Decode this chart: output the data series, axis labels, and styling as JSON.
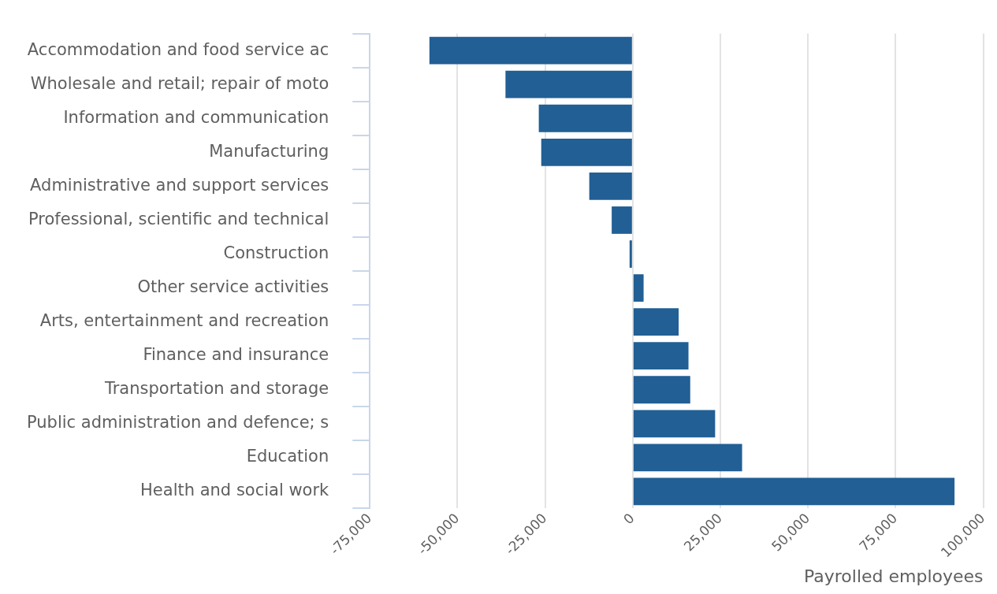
{
  "chart_data": {
    "type": "bar",
    "orientation": "horizontal",
    "xlabel": "Payrolled employees",
    "categories": [
      "Accommodation and food service ac",
      "Wholesale and retail; repair of moto",
      "Information and communication",
      "Manufacturing",
      "Administrative and support services",
      "Professional, scientific and technical",
      "Construction",
      "Other service activities",
      "Arts, entertainment and recreation",
      "Finance and insurance",
      "Transportation and storage",
      "Public administration and defence; s",
      "Education",
      "Health and social work"
    ],
    "values": [
      -58000,
      -36300,
      -26800,
      -26100,
      -12400,
      -6000,
      -900,
      3100,
      13100,
      15900,
      16400,
      23500,
      31200,
      91800
    ],
    "color": "#215f95",
    "xlim": [
      -75000,
      100000
    ],
    "xticks": [
      {
        "value": -75000,
        "label": "-75,000"
      },
      {
        "value": -50000,
        "label": "-50,000"
      },
      {
        "value": -25000,
        "label": "-25,000"
      },
      0,
      {
        "value": 25000,
        "label": "25,000"
      },
      {
        "value": 50000,
        "label": "50,000"
      },
      {
        "value": 75000,
        "label": "75,000"
      },
      {
        "value": 100000,
        "label": "100,000"
      }
    ],
    "grid": "x",
    "legend": false
  }
}
